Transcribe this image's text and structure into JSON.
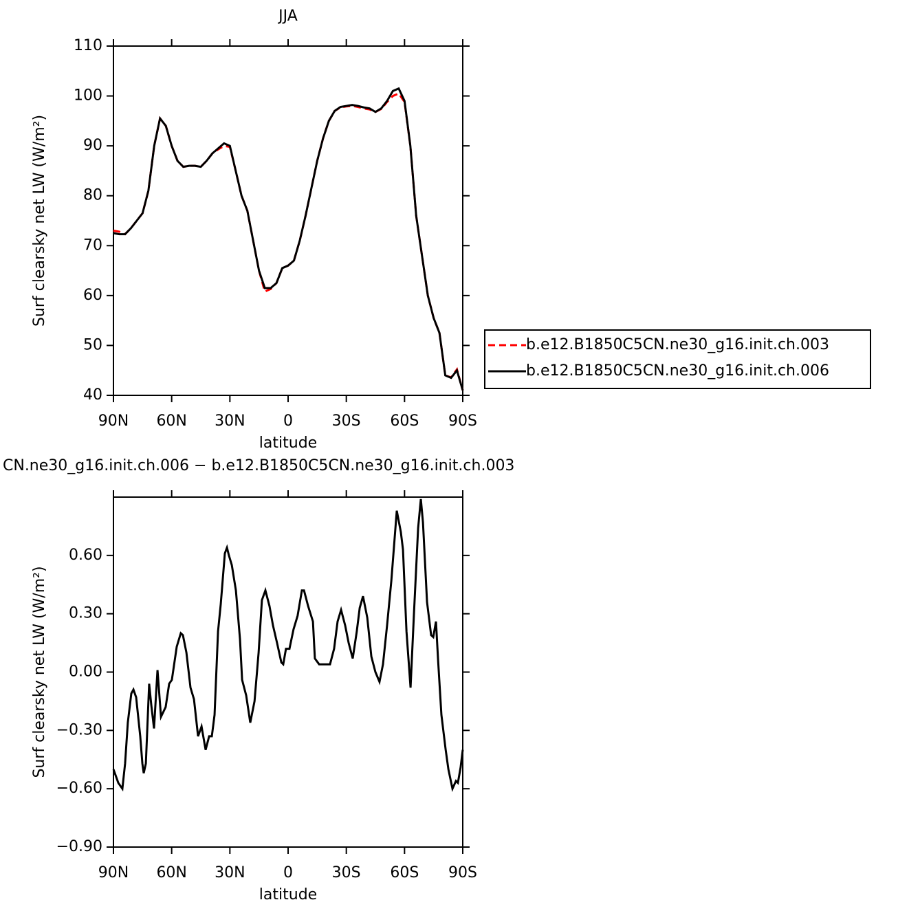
{
  "chart_data": [
    {
      "type": "line",
      "title": "JJA",
      "xlabel": "latitude",
      "ylabel": "Surf clearsky net LW (W/m²)",
      "x": [
        90,
        87,
        84,
        81,
        78,
        75,
        72,
        69,
        66,
        63,
        60,
        57,
        54,
        51,
        48,
        45,
        42,
        39,
        36,
        33,
        30,
        27,
        24,
        21,
        18,
        15,
        12,
        9,
        6,
        3,
        0,
        -3,
        -6,
        -9,
        -12,
        -15,
        -18,
        -21,
        -24,
        -27,
        -30,
        -33,
        -36,
        -39,
        -42,
        -45,
        -48,
        -51,
        -54,
        -57,
        -60,
        -63,
        -66,
        -69,
        -72,
        -75,
        -78,
        -81,
        -84,
        -87,
        -90
      ],
      "series": [
        {
          "name": "b.e12.B1850C5CN.ne30_g16.init.ch.003",
          "color": "#ff0000",
          "dashed": true,
          "values": [
            73,
            72.8,
            72.3,
            73.5,
            75,
            76.5,
            81,
            90,
            95.5,
            94,
            90,
            87,
            85.8,
            86,
            86,
            85.8,
            87,
            88.5,
            89.3,
            90,
            89.8,
            85,
            80,
            77,
            71,
            65,
            60.8,
            61.3,
            62.5,
            65.5,
            66,
            67,
            71,
            76,
            81.5,
            87,
            91.5,
            95,
            97,
            97.7,
            97.9,
            98,
            97.8,
            97.5,
            97.3,
            96.8,
            97.4,
            98.8,
            100,
            100.5,
            98.8,
            90,
            76,
            68,
            60,
            55.5,
            52.5,
            44,
            43.6,
            45.2,
            41
          ]
        },
        {
          "name": "b.e12.B1850C5CN.ne30_g16.init.ch.006",
          "color": "#000000",
          "dashed": false,
          "values": [
            72.5,
            72.3,
            72.3,
            73.5,
            75,
            76.5,
            81,
            90,
            95.5,
            94,
            90,
            87,
            85.8,
            86,
            86,
            85.8,
            87,
            88.5,
            89.5,
            90.5,
            90,
            85,
            80,
            77,
            71,
            65,
            61.5,
            61.5,
            62.5,
            65.5,
            66,
            67,
            71,
            76,
            81.5,
            87,
            91.5,
            95,
            97,
            97.8,
            98,
            98.2,
            98,
            97.7,
            97.5,
            96.8,
            97.5,
            99,
            101,
            101.5,
            99,
            90,
            76,
            68,
            60,
            55.5,
            52.5,
            44,
            43.5,
            45,
            41
          ]
        }
      ],
      "xlim": [
        90,
        -90
      ],
      "ylim": [
        40,
        110
      ],
      "xticks": [
        {
          "value": 90,
          "label": "90N"
        },
        {
          "value": 60,
          "label": "60N"
        },
        {
          "value": 30,
          "label": "30N"
        },
        0,
        {
          "value": -30,
          "label": "30S"
        },
        {
          "value": -60,
          "label": "60S"
        },
        {
          "value": -90,
          "label": "90S"
        }
      ],
      "yticks": [
        40,
        50,
        60,
        70,
        80,
        90,
        100,
        110
      ],
      "legend": "right"
    },
    {
      "type": "line",
      "title": "CN.ne30_g16.init.ch.006 − b.e12.B1850C5CN.ne30_g16.init.ch.003",
      "xlabel": "latitude",
      "ylabel": "Surf clearsky net LW (W/m²)",
      "x": [
        90,
        87.5,
        85.4,
        84,
        82.6,
        80.8,
        79.7,
        78.3,
        76.2,
        75.1,
        74.4,
        73.3,
        71.6,
        70.5,
        69.1,
        67.3,
        65.5,
        63.1,
        61.3,
        59.9,
        57.4,
        55.3,
        54.2,
        52.4,
        50.3,
        48.5,
        46.4,
        44.6,
        42.5,
        40.7,
        39.3,
        37.9,
        36.1,
        34.7,
        32.6,
        31.5,
        30.5,
        29,
        26.9,
        24.8,
        23.7,
        21.6,
        19.5,
        17.3,
        15.2,
        13.5,
        11.7,
        9.6,
        7.8,
        5.7,
        3.5,
        2.5,
        1.1,
        -0.7,
        -2.8,
        -4.9,
        -7.1,
        -8.2,
        -10.3,
        -12.8,
        -13.8,
        -16,
        -18.1,
        -20.2,
        -21.6,
        -23.7,
        -25.5,
        -27.3,
        -29.4,
        -31.2,
        -33.3,
        -35.4,
        -36.9,
        -38.6,
        -40.8,
        -42.9,
        -45,
        -47.1,
        -48.9,
        -51,
        -53.2,
        -56,
        -58.1,
        -59.2,
        -61,
        -63.1,
        -64.9,
        -67,
        -68.4,
        -69.5,
        -71.6,
        -73.7,
        -74.8,
        -76.2,
        -77.3,
        -79,
        -81.2,
        -82.6,
        -84.7,
        -86.5,
        -87.5,
        -88.9,
        -90
      ],
      "series": [
        {
          "name": "difference",
          "color": "#000000",
          "dashed": false,
          "values": [
            -0.5,
            -0.57,
            -0.6,
            -0.47,
            -0.26,
            -0.11,
            -0.09,
            -0.13,
            -0.33,
            -0.47,
            -0.52,
            -0.47,
            -0.06,
            -0.17,
            -0.29,
            0.01,
            -0.23,
            -0.18,
            -0.06,
            -0.04,
            0.13,
            0.2,
            0.19,
            0.1,
            -0.08,
            -0.14,
            -0.33,
            -0.28,
            -0.4,
            -0.33,
            -0.33,
            -0.22,
            0.21,
            0.35,
            0.61,
            0.64,
            0.6,
            0.55,
            0.42,
            0.17,
            -0.04,
            -0.12,
            -0.26,
            -0.15,
            0.1,
            0.37,
            0.42,
            0.34,
            0.24,
            0.15,
            0.05,
            0.04,
            0.12,
            0.12,
            0.22,
            0.29,
            0.42,
            0.42,
            0.34,
            0.26,
            0.07,
            0.04,
            0.04,
            0.04,
            0.04,
            0.12,
            0.26,
            0.32,
            0.24,
            0.15,
            0.07,
            0.21,
            0.33,
            0.39,
            0.28,
            0.08,
            0,
            -0.05,
            0.04,
            0.24,
            0.47,
            0.83,
            0.72,
            0.63,
            0.21,
            -0.08,
            0.31,
            0.74,
            0.89,
            0.77,
            0.36,
            0.19,
            0.18,
            0.26,
            0.06,
            -0.22,
            -0.4,
            -0.5,
            -0.6,
            -0.56,
            -0.57,
            -0.49,
            -0.4
          ]
        }
      ],
      "xlim": [
        90,
        -90
      ],
      "ylim": [
        -0.9,
        0.9
      ],
      "xticks": [
        {
          "value": 90,
          "label": "90N"
        },
        {
          "value": 60,
          "label": "60N"
        },
        {
          "value": 30,
          "label": "30N"
        },
        0,
        {
          "value": -30,
          "label": "30S"
        },
        {
          "value": -60,
          "label": "60S"
        },
        {
          "value": -90,
          "label": "90S"
        }
      ],
      "yticks": [
        {
          "value": -0.9,
          "label": "−0.90"
        },
        {
          "value": -0.6,
          "label": "−0.60"
        },
        {
          "value": -0.3,
          "label": "−0.30"
        },
        {
          "value": 0,
          "label": "0.00"
        },
        {
          "value": 0.3,
          "label": "0.30"
        },
        {
          "value": 0.6,
          "label": "0.60"
        }
      ]
    }
  ]
}
